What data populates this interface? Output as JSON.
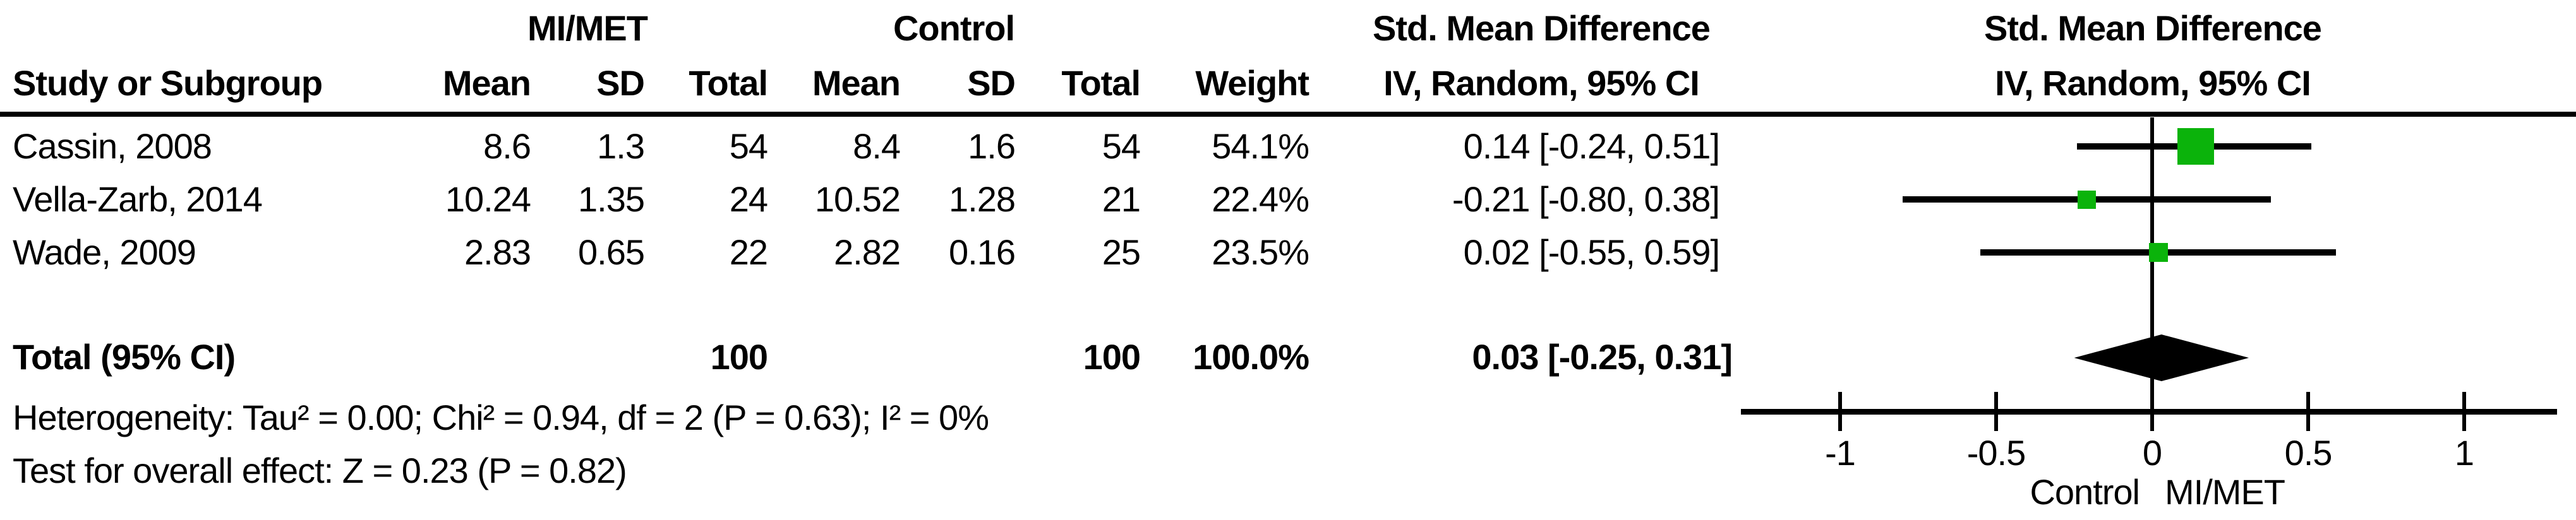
{
  "table": {
    "group1_header": "MI/MET",
    "group2_header": "Control",
    "effect_header_line1": "Std. Mean Difference",
    "effect_header_line2": "IV, Random, 95% CI",
    "plot_header_line1": "Std. Mean Difference",
    "plot_header_line2": "IV, Random, 95% CI",
    "col_study": "Study or Subgroup",
    "col_mean1": "Mean",
    "col_sd1": "SD",
    "col_total1": "Total",
    "col_mean2": "Mean",
    "col_sd2": "SD",
    "col_total2": "Total",
    "col_weight": "Weight",
    "rows": [
      {
        "study": "Cassin, 2008",
        "mean1": "8.6",
        "sd1": "1.3",
        "total1": "54",
        "mean2": "8.4",
        "sd2": "1.6",
        "total2": "54",
        "weight": "54.1%",
        "ci": "0.14 [-0.24, 0.51]"
      },
      {
        "study": "Vella-Zarb, 2014",
        "mean1": "10.24",
        "sd1": "1.35",
        "total1": "24",
        "mean2": "10.52",
        "sd2": "1.28",
        "total2": "21",
        "weight": "22.4%",
        "ci": "-0.21 [-0.80, 0.38]"
      },
      {
        "study": "Wade, 2009",
        "mean1": "2.83",
        "sd1": "0.65",
        "total1": "22",
        "mean2": "2.82",
        "sd2": "0.16",
        "total2": "25",
        "weight": "23.5%",
        "ci": "0.02 [-0.55, 0.59]"
      }
    ],
    "total_row": {
      "label": "Total (95% CI)",
      "total1": "100",
      "total2": "100",
      "weight": "100.0%",
      "ci": "0.03 [-0.25, 0.31]"
    },
    "heterogeneity": "Heterogeneity: Tau² = 0.00; Chi² = 0.94, df = 2 (P = 0.63); I² = 0%",
    "overall_effect": "Test for overall effect: Z = 0.23 (P = 0.82)"
  },
  "chart_data": {
    "type": "forest",
    "effect_measure": "Std. Mean Difference",
    "method": "IV, Random, 95% CI",
    "studies": [
      {
        "name": "Cassin, 2008",
        "smd": 0.14,
        "ci_low": -0.24,
        "ci_high": 0.51,
        "weight_pct": 54.1
      },
      {
        "name": "Vella-Zarb, 2014",
        "smd": -0.21,
        "ci_low": -0.8,
        "ci_high": 0.38,
        "weight_pct": 22.4
      },
      {
        "name": "Wade, 2009",
        "smd": 0.02,
        "ci_low": -0.55,
        "ci_high": 0.59,
        "weight_pct": 23.5
      }
    ],
    "total": {
      "label": "Total (95% CI)",
      "smd": 0.03,
      "ci_low": -0.25,
      "ci_high": 0.31,
      "weight_pct": 100.0
    },
    "axis": {
      "ticks": [
        -1,
        -0.5,
        0,
        0.5,
        1
      ],
      "tick_labels": [
        "-1",
        "-0.5",
        "0",
        "0.5",
        "1"
      ],
      "xmin": -1.32,
      "xmax": 1.29,
      "left_label": "Control",
      "right_label": "MI/MET"
    },
    "marker_color": "#0bb30b",
    "line_color": "#000000"
  }
}
